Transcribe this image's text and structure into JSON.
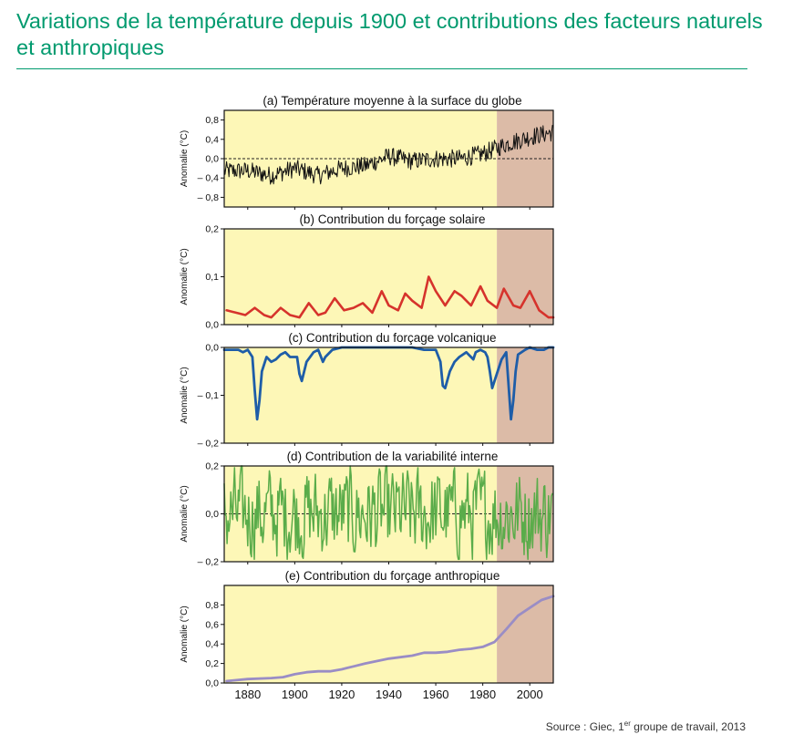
{
  "header": {
    "title": "Variations de la température depuis 1900 et contributions des facteurs naturels et anthropiques"
  },
  "source": {
    "prefix": "Source : Giec, 1",
    "sup": "er",
    "suffix": " groupe de travail, 2013"
  },
  "colors": {
    "title": "#009a6e",
    "bg_early": "#fdf7b7",
    "bg_recent": "#dcbba7",
    "temperature": "#111111",
    "solar": "#d6332c",
    "volcanic": "#1e5da8",
    "internal": "#5aac4a",
    "anthropogenic": "#9a8dc5"
  },
  "chart_data": [
    {
      "type": "line",
      "id": "a",
      "title": "(a) Température moyenne à la surface du globe",
      "ylabel": "Anomalie (°C)",
      "xlim": [
        1870,
        2010
      ],
      "ylim": [
        -1.0,
        1.0
      ],
      "yticks": [
        -0.8,
        -0.4,
        0.0,
        0.4,
        0.8
      ],
      "ytick_labels": [
        "– 0,8",
        "– 0,4",
        "0,0",
        "0,4",
        "0,8"
      ],
      "zero_line": true,
      "highlight_from": 1986,
      "series": [
        {
          "name": "Température moyenne",
          "x": [
            1870,
            1880,
            1890,
            1900,
            1910,
            1920,
            1930,
            1940,
            1950,
            1960,
            1970,
            1980,
            1990,
            2000,
            2010
          ],
          "values": [
            -0.25,
            -0.25,
            -0.35,
            -0.2,
            -0.35,
            -0.2,
            -0.15,
            0.05,
            -0.05,
            0.0,
            0.0,
            0.1,
            0.3,
            0.45,
            0.55
          ],
          "note": "annual values, noisy"
        }
      ]
    },
    {
      "type": "line",
      "id": "b",
      "title": "(b) Contribution du forçage solaire",
      "ylabel": "Anomalie (°C)",
      "xlim": [
        1870,
        2010
      ],
      "ylim": [
        0.0,
        0.2
      ],
      "yticks": [
        0.0,
        0.1,
        0.2
      ],
      "ytick_labels": [
        "0,0",
        "0,1",
        "0,2"
      ],
      "highlight_from": 1986,
      "series": [
        {
          "name": "Forçage solaire",
          "x": [
            1871,
            1875,
            1879,
            1883,
            1887,
            1890,
            1894,
            1898,
            1902,
            1906,
            1910,
            1913,
            1917,
            1921,
            1925,
            1929,
            1933,
            1937,
            1940,
            1944,
            1947,
            1950,
            1954,
            1957,
            1960,
            1964,
            1968,
            1971,
            1975,
            1979,
            1982,
            1986,
            1989,
            1993,
            1996,
            2000,
            2004,
            2008,
            2010
          ],
          "values": [
            0.03,
            0.025,
            0.02,
            0.035,
            0.02,
            0.015,
            0.035,
            0.02,
            0.015,
            0.045,
            0.02,
            0.025,
            0.055,
            0.03,
            0.035,
            0.045,
            0.025,
            0.07,
            0.04,
            0.03,
            0.065,
            0.05,
            0.035,
            0.1,
            0.07,
            0.04,
            0.07,
            0.06,
            0.04,
            0.08,
            0.05,
            0.035,
            0.075,
            0.04,
            0.035,
            0.07,
            0.03,
            0.015,
            0.015
          ]
        }
      ]
    },
    {
      "type": "line",
      "id": "c",
      "title": "(c) Contribution du forçage volcanique",
      "ylabel": "Anomalie (°C)",
      "xlim": [
        1870,
        2010
      ],
      "ylim": [
        -0.2,
        0.0
      ],
      "yticks": [
        0.0,
        -0.1,
        -0.2
      ],
      "ytick_labels": [
        "0,0",
        "– 0,1",
        "– 0,2"
      ],
      "highlight_from": 1986,
      "series": [
        {
          "name": "Forçage volcanique",
          "x": [
            1870,
            1873,
            1876,
            1878,
            1880,
            1882,
            1883,
            1884,
            1885,
            1886,
            1888,
            1890,
            1892,
            1894,
            1896,
            1898,
            1901,
            1902,
            1903,
            1905,
            1908,
            1910,
            1912,
            1913,
            1916,
            1920,
            1930,
            1940,
            1950,
            1955,
            1960,
            1962,
            1963,
            1964,
            1966,
            1968,
            1970,
            1973,
            1976,
            1977,
            1979,
            1981,
            1982,
            1983,
            1984,
            1986,
            1988,
            1990,
            1991,
            1992,
            1993,
            1994,
            1995,
            1998,
            2000,
            2003,
            2006,
            2008,
            2010
          ],
          "values": [
            -0.005,
            -0.005,
            -0.005,
            -0.01,
            -0.005,
            -0.02,
            -0.09,
            -0.15,
            -0.11,
            -0.05,
            -0.02,
            -0.03,
            -0.025,
            -0.015,
            -0.01,
            -0.02,
            -0.02,
            -0.055,
            -0.07,
            -0.03,
            -0.01,
            -0.005,
            -0.03,
            -0.02,
            -0.005,
            0.0,
            0.0,
            0.0,
            0.0,
            -0.005,
            -0.005,
            -0.03,
            -0.08,
            -0.085,
            -0.05,
            -0.03,
            -0.02,
            -0.01,
            -0.025,
            -0.01,
            -0.005,
            -0.01,
            -0.02,
            -0.05,
            -0.085,
            -0.055,
            -0.025,
            -0.01,
            -0.08,
            -0.15,
            -0.11,
            -0.05,
            -0.015,
            -0.005,
            0.0,
            -0.005,
            -0.005,
            0.0,
            0.0
          ]
        }
      ]
    },
    {
      "type": "line",
      "id": "d",
      "title": "(d) Contribution de la variabilité interne",
      "ylabel": "Anomalie (°C)",
      "xlim": [
        1870,
        2010
      ],
      "ylim": [
        -0.2,
        0.2
      ],
      "yticks": [
        -0.2,
        0.0,
        0.2
      ],
      "ytick_labels": [
        "– 0,2",
        "0,0",
        "0,2"
      ],
      "zero_line": true,
      "highlight_from": 1986,
      "series": [
        {
          "name": "Variabilité interne",
          "note": "annual values, noisy, range about ±0.2",
          "x": [
            1870,
            1890,
            1910,
            1930,
            1950,
            1970,
            1990,
            2010
          ],
          "values": [
            0.0,
            0.0,
            0.0,
            0.0,
            0.0,
            0.0,
            0.0,
            0.0
          ]
        }
      ]
    },
    {
      "type": "line",
      "id": "e",
      "title": "(e) Contribution du forçage anthropique",
      "ylabel": "Anomalie (°C)",
      "xlim": [
        1870,
        2010
      ],
      "ylim": [
        0.0,
        1.0
      ],
      "yticks": [
        0.0,
        0.2,
        0.4,
        0.6,
        0.8
      ],
      "ytick_labels": [
        "0,0",
        "0,2",
        "0,4",
        "0,6",
        "0,8"
      ],
      "xticks": [
        1880,
        1900,
        1920,
        1940,
        1960,
        1980,
        2000
      ],
      "xtick_labels": [
        "1880",
        "1900",
        "1920",
        "1940",
        "1960",
        "1980",
        "2000"
      ],
      "highlight_from": 1986,
      "series": [
        {
          "name": "Forçage anthropique",
          "x": [
            1871,
            1880,
            1890,
            1895,
            1900,
            1905,
            1910,
            1915,
            1920,
            1925,
            1930,
            1940,
            1950,
            1955,
            1960,
            1965,
            1970,
            1975,
            1980,
            1985,
            1990,
            1995,
            2000,
            2005,
            2010
          ],
          "values": [
            0.02,
            0.04,
            0.05,
            0.06,
            0.09,
            0.11,
            0.12,
            0.12,
            0.14,
            0.17,
            0.2,
            0.25,
            0.28,
            0.31,
            0.31,
            0.32,
            0.34,
            0.35,
            0.37,
            0.42,
            0.55,
            0.69,
            0.77,
            0.85,
            0.89
          ]
        }
      ]
    }
  ]
}
